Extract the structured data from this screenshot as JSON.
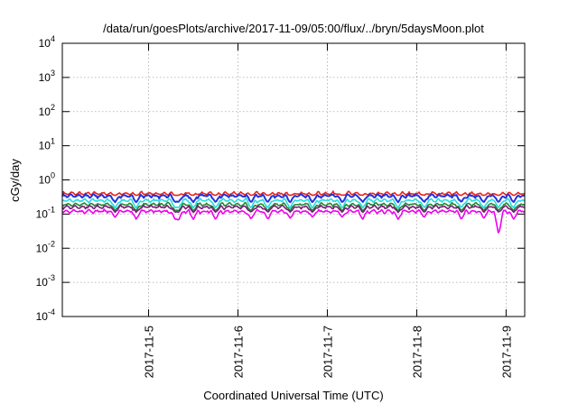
{
  "title": "/data/run/goesPlots/archive/2017-11-09/05:00/flux/../bryn/5daysMoon.plot",
  "chart_data": {
    "type": "line",
    "title": "/data/run/goesPlots/archive/2017-11-09/05:00/flux/../bryn/5daysMoon.plot",
    "xlabel": "Coordinated Universal Time (UTC)",
    "ylabel": "cGy/day",
    "y_scale": "log",
    "ylim": [
      0.0001,
      10000
    ],
    "y_ticks": [
      {
        "base": "10",
        "exp": "-4"
      },
      {
        "base": "10",
        "exp": "-3"
      },
      {
        "base": "10",
        "exp": "-2"
      },
      {
        "base": "10",
        "exp": "-1"
      },
      {
        "base": "10",
        "exp": "0"
      },
      {
        "base": "10",
        "exp": "1"
      },
      {
        "base": "10",
        "exp": "2"
      },
      {
        "base": "10",
        "exp": "3"
      },
      {
        "base": "10",
        "exp": "4"
      }
    ],
    "xlim": [
      "2017-11-04 00:50",
      "2017-11-09 05:00"
    ],
    "x_ticks": [
      "2017-11-5",
      "2017-11-6",
      "2017-11-7",
      "2017-11-8",
      "2017-11-9"
    ],
    "x_tick_dates": [
      "2017-11-05",
      "2017-11-06",
      "2017-11-07",
      "2017-11-08",
      "2017-11-09"
    ],
    "grid": true,
    "legend": "none",
    "series": [
      {
        "color": "#e8231b",
        "level": 0.4,
        "dip_depth": 0.12
      },
      {
        "color": "#2233dd",
        "level": 0.34,
        "dip_depth": 0.35
      },
      {
        "color": "#22dddd",
        "level": 0.25,
        "dip_depth": 0.4
      },
      {
        "color": "#228833",
        "level": 0.19,
        "dip_depth": 0.35
      },
      {
        "color": "#7a1c7a",
        "level": 0.16,
        "dip_depth": 0.3
      },
      {
        "color": "#ee00ee",
        "level": 0.12,
        "dip_depth": 0.45
      }
    ],
    "spikes": [
      {
        "date": "2017-11-04 15:00",
        "min": 0.08
      },
      {
        "date": "2017-11-04 20:40",
        "min": 0.07
      },
      {
        "date": "2017-11-05 07:10",
        "min": 0.07
      },
      {
        "date": "2017-11-05 08:00",
        "min": 0.065
      },
      {
        "date": "2017-11-05 12:00",
        "min": 0.07
      },
      {
        "date": "2017-11-05 18:00",
        "min": 0.07
      },
      {
        "date": "2017-11-06 03:30",
        "min": 0.07
      },
      {
        "date": "2017-11-06 08:00",
        "min": 0.07
      },
      {
        "date": "2017-11-06 14:00",
        "min": 0.075
      },
      {
        "date": "2017-11-06 20:00",
        "min": 0.08
      },
      {
        "date": "2017-11-07 04:00",
        "min": 0.08
      },
      {
        "date": "2017-11-07 09:30",
        "min": 0.07
      },
      {
        "date": "2017-11-07 19:00",
        "min": 0.07
      },
      {
        "date": "2017-11-08 02:00",
        "min": 0.08
      },
      {
        "date": "2017-11-08 12:00",
        "min": 0.07
      },
      {
        "date": "2017-11-08 18:00",
        "min": 0.075
      },
      {
        "date": "2017-11-08 22:00",
        "min": 0.025
      },
      {
        "date": "2017-11-09 02:00",
        "min": 0.07
      }
    ]
  }
}
